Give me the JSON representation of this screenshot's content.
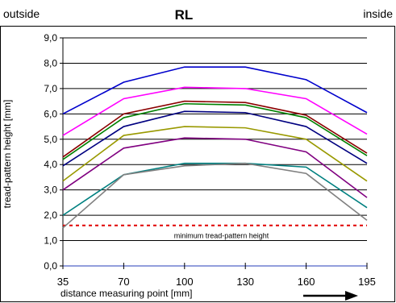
{
  "chart_data": {
    "type": "line",
    "title": "RL",
    "left_note": "outside",
    "right_note": "inside",
    "xlabel": "distance measuring point [mm]",
    "ylabel": "tread-pattern height [mm]",
    "x_categories": [
      "35",
      "70",
      "100",
      "130",
      "160",
      "195"
    ],
    "ylim": [
      0,
      9
    ],
    "y_ticks": [
      0,
      1,
      2,
      3,
      4,
      5,
      6,
      7,
      8,
      9
    ],
    "y_tick_labels": [
      "0,0",
      "1,0",
      "2,0",
      "3,0",
      "4,0",
      "5,0",
      "6,0",
      "7,0",
      "8,0",
      "9,0"
    ],
    "grid": true,
    "series": [
      {
        "color": "#0000CC",
        "values": [
          6.0,
          7.25,
          7.85,
          7.85,
          7.35,
          6.05
        ]
      },
      {
        "color": "#FF00FF",
        "values": [
          5.15,
          6.6,
          7.05,
          7.0,
          6.6,
          5.2
        ]
      },
      {
        "color": "#8B0000",
        "values": [
          4.3,
          6.0,
          6.5,
          6.45,
          5.95,
          4.45
        ]
      },
      {
        "color": "#008000",
        "values": [
          4.2,
          5.85,
          6.4,
          6.35,
          5.85,
          4.35
        ]
      },
      {
        "color": "#000080",
        "values": [
          3.95,
          5.5,
          6.1,
          6.05,
          5.5,
          4.05
        ]
      },
      {
        "color": "#999900",
        "values": [
          3.35,
          5.15,
          5.5,
          5.45,
          5.0,
          3.35
        ]
      },
      {
        "color": "#800080",
        "values": [
          3.0,
          4.65,
          5.05,
          5.0,
          4.5,
          2.7
        ]
      },
      {
        "color": "#008080",
        "values": [
          2.0,
          3.6,
          4.05,
          4.05,
          3.9,
          2.3
        ]
      },
      {
        "color": "#808080",
        "values": [
          1.5,
          3.6,
          3.95,
          4.05,
          3.65,
          1.8
        ]
      }
    ],
    "min_line": {
      "value": 1.6,
      "label": "minimum tread-pattern height",
      "color": "#E00000"
    },
    "arrow_color": "#000000"
  }
}
